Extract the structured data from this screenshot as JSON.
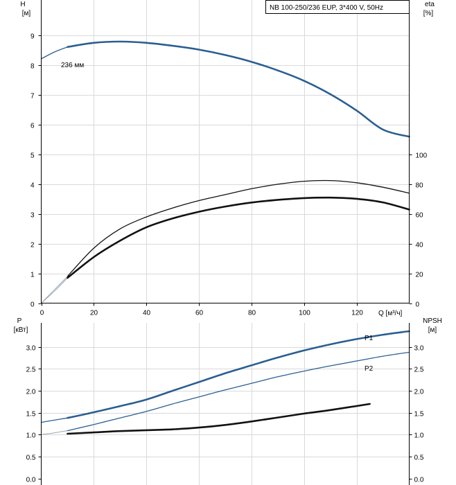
{
  "title": "NB 100-250/236 EUP, 3*400 V, 50Hz",
  "colors": {
    "blue": "#2a5e91",
    "black": "#111111",
    "gray": "#9aa6b3",
    "grid": "#d9d9d9"
  },
  "chart_data": [
    {
      "type": "line",
      "name": "head-efficiency",
      "ylabel": "H",
      "yunit": "[м]",
      "y2label": "eta",
      "y2unit": "[%]",
      "xlabel": "Q [м³/ч]",
      "xlim": [
        0,
        140
      ],
      "xticks": [
        "0",
        "20",
        "40",
        "60",
        "80",
        "100",
        "120"
      ],
      "xtick_values": [
        0,
        20,
        40,
        60,
        80,
        100,
        120
      ],
      "ylim": [
        0,
        10.2
      ],
      "yticks": [
        "0",
        "1",
        "2",
        "3",
        "4",
        "5",
        "6",
        "7",
        "8",
        "9"
      ],
      "ytick_values": [
        0,
        1,
        2,
        3,
        4,
        5,
        6,
        7,
        8,
        9
      ],
      "y2ticks": [
        "0",
        "20",
        "40",
        "60",
        "80",
        "100"
      ],
      "y2tick_values": [
        0,
        20,
        40,
        60,
        80,
        100
      ],
      "curve_label": "236 мм",
      "series": [
        {
          "name": "H thin",
          "axis": "left",
          "style": "thin-blue",
          "x": [
            0,
            5,
            10
          ],
          "y": [
            8.22,
            8.45,
            8.62
          ]
        },
        {
          "name": "H",
          "axis": "left",
          "style": "thick-blue",
          "x": [
            10,
            20,
            30,
            40,
            50,
            60,
            70,
            80,
            90,
            100,
            110,
            120,
            130,
            140
          ],
          "y": [
            8.62,
            8.76,
            8.8,
            8.76,
            8.66,
            8.53,
            8.35,
            8.12,
            7.83,
            7.48,
            7.03,
            6.48,
            5.84,
            5.6
          ]
        },
        {
          "name": "eta thin",
          "axis": "right",
          "style": "thin-gray",
          "x": [
            0,
            5,
            10
          ],
          "y": [
            0,
            8,
            17
          ]
        },
        {
          "name": "eta",
          "axis": "right",
          "style": "thick-black",
          "x": [
            10,
            20,
            30,
            40,
            50,
            60,
            70,
            80,
            90,
            100,
            110,
            120,
            130,
            140
          ],
          "y": [
            17,
            31,
            42,
            51,
            57,
            61.5,
            65,
            67.7,
            69.5,
            70.7,
            71,
            70.2,
            67.8,
            63
          ]
        },
        {
          "name": "eta-p1 thin",
          "axis": "right",
          "style": "thin-gray",
          "x": [
            0,
            5,
            10
          ],
          "y": [
            0,
            9,
            18
          ]
        },
        {
          "name": "eta-p1",
          "axis": "right",
          "style": "thin-black",
          "x": [
            10,
            20,
            30,
            40,
            50,
            60,
            70,
            80,
            90,
            100,
            110,
            120,
            130,
            140
          ],
          "y": [
            18,
            37,
            50,
            58,
            64,
            69,
            73,
            77,
            80,
            82,
            82.5,
            81,
            78,
            74
          ]
        }
      ]
    },
    {
      "type": "line",
      "name": "power-npsh",
      "ylabel": "P",
      "yunit": "[кВт]",
      "y2label": "NPSH",
      "y2unit": "[м]",
      "xlim": [
        0,
        140
      ],
      "ylim": [
        0,
        3.55
      ],
      "yticks": [
        "0.0",
        "0.5",
        "1.0",
        "1.5",
        "2.0",
        "2.5",
        "3.0"
      ],
      "ytick_values": [
        0,
        0.5,
        1,
        1.5,
        2,
        2.5,
        3
      ],
      "y2ticks": [
        "0.0",
        "0.5",
        "1.0",
        "1.5",
        "2.0",
        "2.5",
        "3.0"
      ],
      "y2tick_values": [
        0,
        0.5,
        1,
        1.5,
        2,
        2.5,
        3
      ],
      "series_labels": {
        "p1": "P1",
        "p2": "P2"
      },
      "series": [
        {
          "name": "P1 thin",
          "axis": "left",
          "style": "thin-blue",
          "x": [
            0,
            5,
            10
          ],
          "y": [
            1.28,
            1.33,
            1.38
          ]
        },
        {
          "name": "P1",
          "axis": "left",
          "style": "thick-blue",
          "x": [
            10,
            20,
            30,
            40,
            50,
            60,
            70,
            80,
            90,
            100,
            110,
            120,
            130,
            140
          ],
          "y": [
            1.38,
            1.51,
            1.65,
            1.8,
            2.0,
            2.2,
            2.4,
            2.58,
            2.76,
            2.92,
            3.06,
            3.18,
            3.28,
            3.36
          ]
        },
        {
          "name": "P2 thin",
          "axis": "left",
          "style": "thin-gray",
          "x": [
            0,
            5,
            10
          ],
          "y": [
            1.0,
            1.04,
            1.09
          ]
        },
        {
          "name": "P2",
          "axis": "left",
          "style": "thin-blue",
          "x": [
            10,
            20,
            30,
            40,
            50,
            60,
            70,
            80,
            90,
            100,
            110,
            120,
            130,
            140
          ],
          "y": [
            1.09,
            1.23,
            1.38,
            1.53,
            1.7,
            1.86,
            2.02,
            2.17,
            2.32,
            2.45,
            2.57,
            2.68,
            2.79,
            2.88
          ]
        },
        {
          "name": "NPSH",
          "axis": "right",
          "style": "thick-black",
          "x": [
            10,
            20,
            30,
            40,
            50,
            60,
            70,
            80,
            90,
            100,
            110,
            125
          ],
          "y": [
            1.02,
            1.05,
            1.08,
            1.1,
            1.12,
            1.16,
            1.22,
            1.3,
            1.39,
            1.48,
            1.56,
            1.7
          ]
        }
      ]
    }
  ]
}
